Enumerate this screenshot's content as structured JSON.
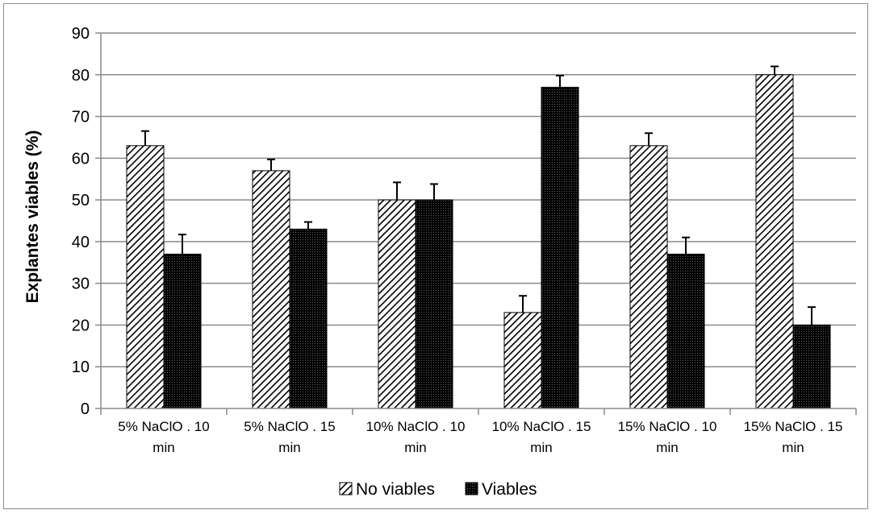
{
  "chart_data": {
    "type": "bar",
    "title": "",
    "xlabel": "",
    "ylabel": "Explantes viables (%)",
    "ylim": [
      0,
      90
    ],
    "yticks": [
      0,
      10,
      20,
      30,
      40,
      50,
      60,
      70,
      80,
      90
    ],
    "grid": true,
    "legend_position": "bottom",
    "categories": [
      [
        "5% NaClO . 10",
        "min"
      ],
      [
        "5% NaClO . 15",
        "min"
      ],
      [
        "10% NaClO . 10",
        "min"
      ],
      [
        "10% NaClO . 15",
        "min"
      ],
      [
        "15% NaClO . 10",
        "min"
      ],
      [
        "15% NaClO . 15",
        "min"
      ]
    ],
    "series": [
      {
        "name": "No viables",
        "pattern": "diagonal-hatch",
        "color": "#000000",
        "values": [
          63,
          57,
          50,
          23,
          63,
          80
        ],
        "errors": [
          3.5,
          2.7,
          4.2,
          4,
          3,
          2
        ]
      },
      {
        "name": "Viables",
        "pattern": "dense-dots",
        "color": "#111111",
        "values": [
          37,
          43,
          50,
          77,
          37,
          20
        ],
        "errors": [
          4.7,
          1.7,
          3.8,
          2.8,
          4,
          4.3
        ]
      }
    ]
  }
}
